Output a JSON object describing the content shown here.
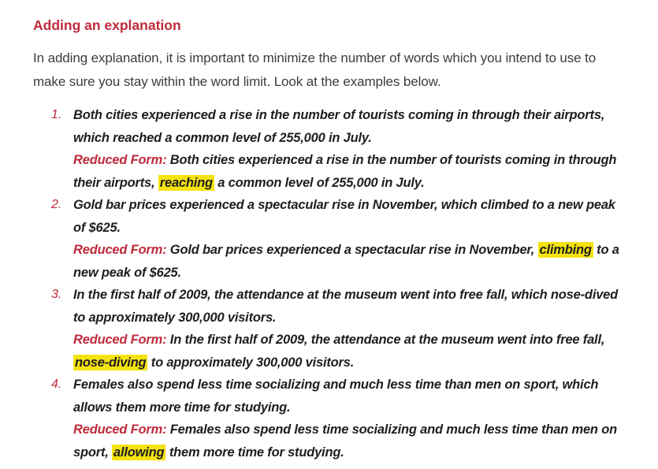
{
  "page": {
    "title": "Adding an explanation",
    "intro": "In adding explanation, it is important to minimize the number of words which you intend to use to make sure you stay within the word limit. Look at the examples below."
  },
  "colors": {
    "accent_red": "#BE2B3B",
    "highlight_yellow": "#F5E211",
    "body_text": "#3C3C3C",
    "list_text": "#1E1E1E",
    "background": "#FFFFFF"
  },
  "list": {
    "items": [
      {
        "number": "1.",
        "original": "Both cities experienced a rise in the number of tourists coming in through their airports, which reached a common level of 255,000 in July.",
        "reduced_label": "Reduced Form:",
        "reduced_before": " Both cities experienced a rise in the number of tourists coming in through their airports, ",
        "highlight": "reaching",
        "reduced_after": " a common level of 255,000 in July."
      },
      {
        "number": "2.",
        "original": "Gold bar prices experienced a spectacular rise in November, which climbed to a new peak of $625.",
        "reduced_label": "Reduced Form:",
        "reduced_before": " Gold bar prices experienced a spectacular rise in November, ",
        "highlight": "climbing",
        "reduced_after": " to a new peak of $625."
      },
      {
        "number": "3.",
        "original": "In the first half of 2009, the attendance at the museum went into free fall, which nose-dived to approximately 300,000 visitors.",
        "reduced_label": "Reduced Form:",
        "reduced_before": " In the first half of 2009, the attendance at the museum went into free fall, ",
        "highlight": "nose-diving",
        "reduced_after": " to approximately 300,000 visitors."
      },
      {
        "number": "4.",
        "original": "Females also spend less time socializing and much less time than men on sport, which allows them more time for studying.",
        "reduced_label": "Reduced Form:",
        "reduced_before": " Females also spend less time socializing and much less time than men on sport, ",
        "highlight": "allowing",
        "reduced_after": " them more time for studying."
      }
    ]
  }
}
